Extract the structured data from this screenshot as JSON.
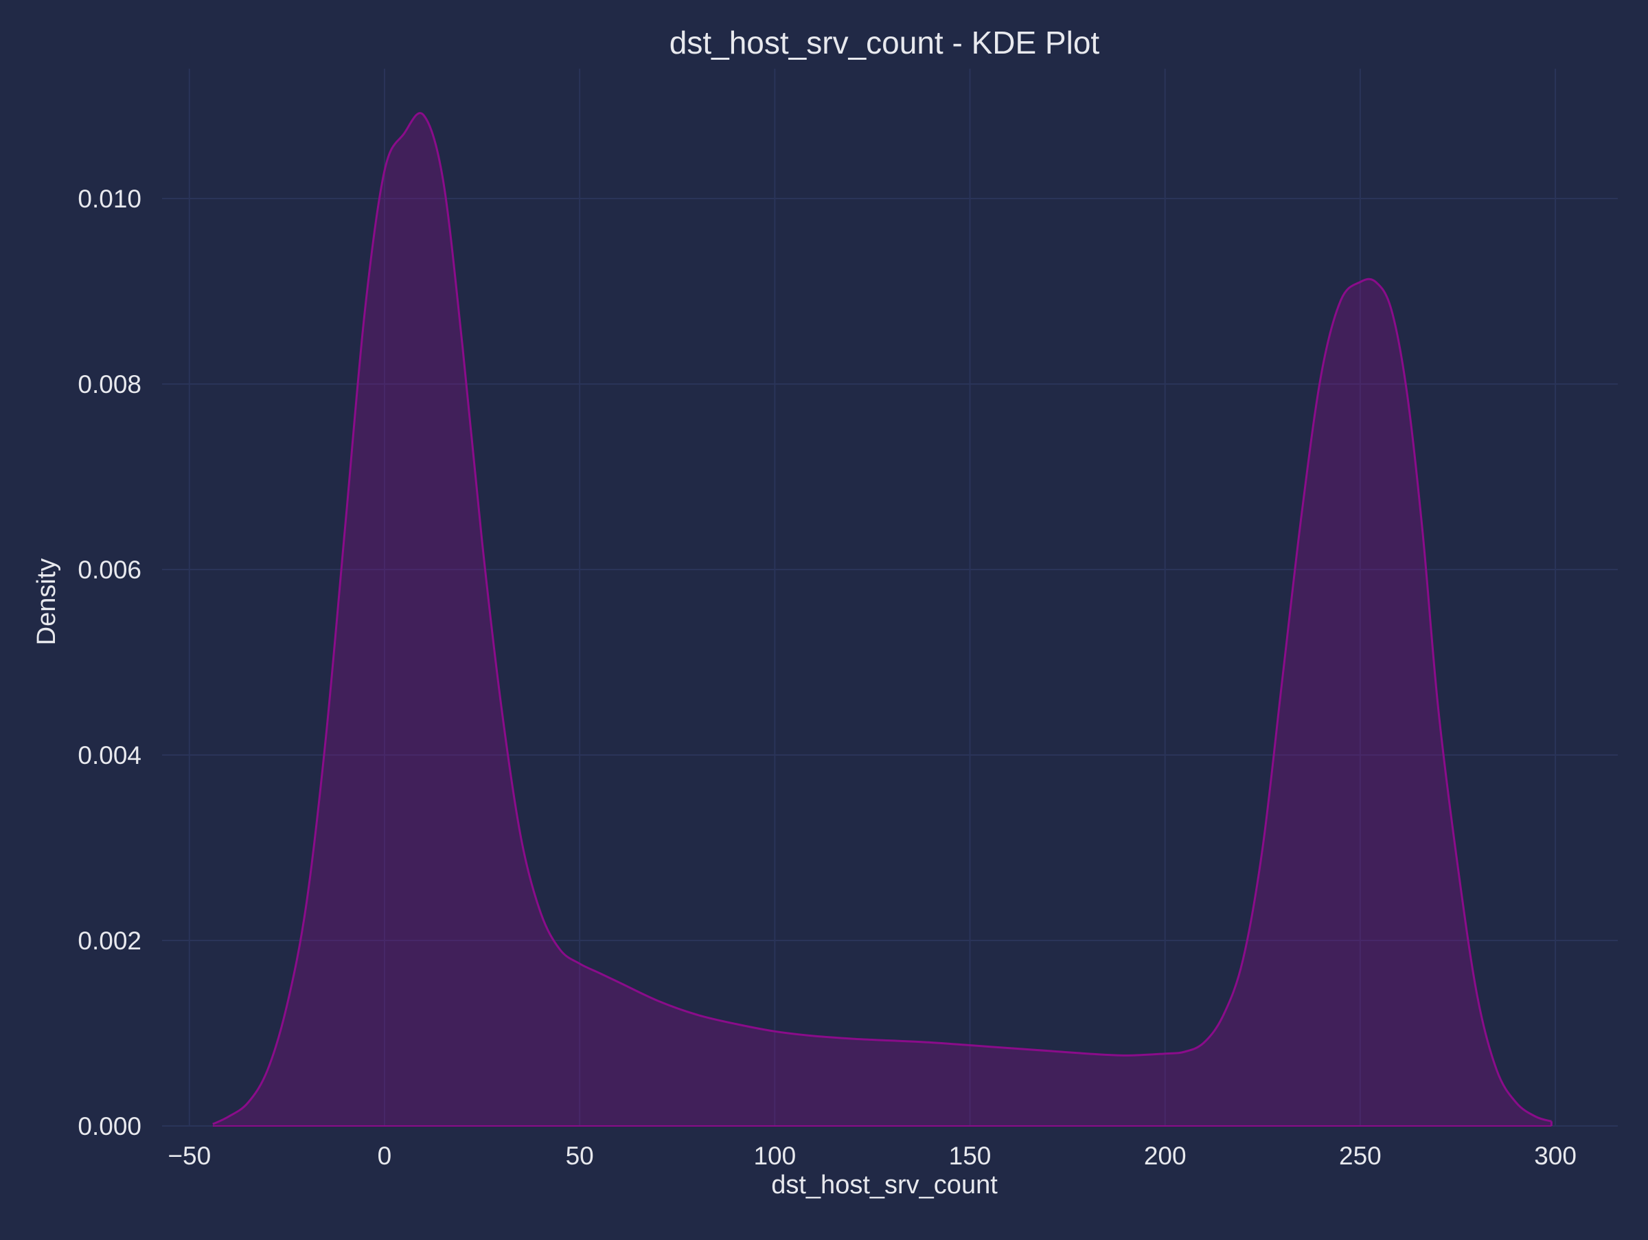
{
  "chart_data": {
    "type": "area",
    "title": "dst_host_srv_count - KDE Plot",
    "xlabel": "dst_host_srv_count",
    "ylabel": "Density",
    "xlim": [
      -57,
      316
    ],
    "ylim": [
      0,
      0.0114
    ],
    "grid": true,
    "x_ticks": [
      -50,
      0,
      50,
      100,
      150,
      200,
      250,
      300
    ],
    "x_tick_labels": [
      "−50",
      "0",
      "50",
      "100",
      "150",
      "200",
      "250",
      "300"
    ],
    "y_ticks": [
      0,
      0.002,
      0.004,
      0.006,
      0.008,
      0.01
    ],
    "y_tick_labels": [
      "0.000",
      "0.002",
      "0.004",
      "0.006",
      "0.008",
      "0.010"
    ],
    "colors": {
      "background": "#212946",
      "grid": "#2a3459",
      "line": "#8a0c8a",
      "fill": "#8a0c8a",
      "text": "#e8e9ee"
    },
    "series": [
      {
        "x": [
          -44,
          -40,
          -35,
          -30,
          -25,
          -20,
          -15,
          -10,
          -5,
          0,
          5,
          10,
          15,
          20,
          25,
          30,
          35,
          40,
          45,
          50,
          55,
          60,
          70,
          80,
          90,
          100,
          110,
          120,
          130,
          140,
          150,
          160,
          170,
          180,
          190,
          200,
          205,
          210,
          215,
          220,
          225,
          230,
          235,
          240,
          245,
          250,
          254,
          258,
          262,
          266,
          270,
          275,
          280,
          285,
          290,
          295,
          299
        ],
        "y": [
          2e-05,
          0.0001,
          0.00025,
          0.0006,
          0.0013,
          0.0024,
          0.0042,
          0.0065,
          0.0088,
          0.0103,
          0.0107,
          0.0109,
          0.0102,
          0.0084,
          0.0063,
          0.0045,
          0.0031,
          0.0023,
          0.0019,
          0.00175,
          0.00165,
          0.00155,
          0.00135,
          0.0012,
          0.0011,
          0.00102,
          0.00097,
          0.00094,
          0.00092,
          0.0009,
          0.00087,
          0.00084,
          0.00081,
          0.00078,
          0.00076,
          0.00078,
          0.0008,
          0.0009,
          0.0012,
          0.0018,
          0.003,
          0.0048,
          0.0066,
          0.0081,
          0.0089,
          0.0091,
          0.0091,
          0.0088,
          0.0079,
          0.0064,
          0.0045,
          0.0028,
          0.0014,
          0.0006,
          0.00025,
          0.0001,
          5e-05
        ]
      }
    ]
  }
}
